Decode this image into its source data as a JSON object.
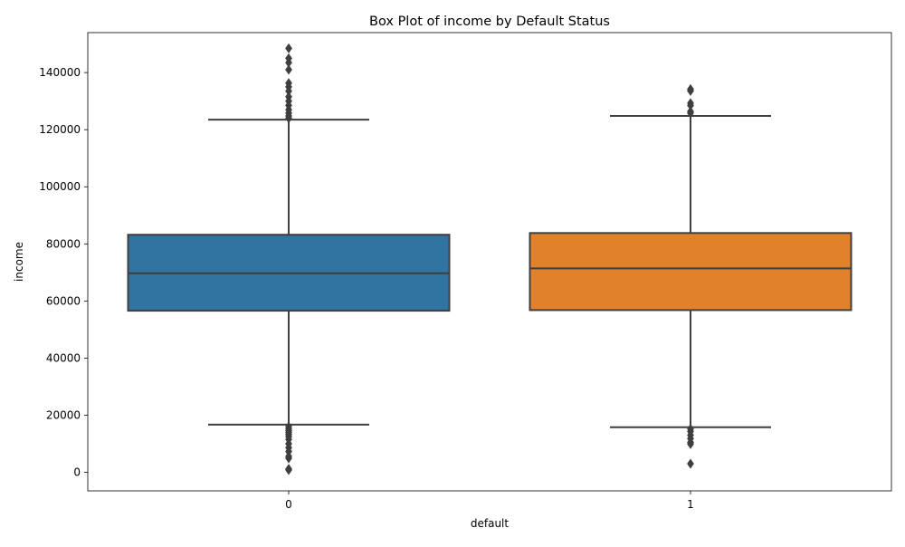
{
  "chart_data": {
    "type": "box",
    "title": "Box Plot of income by Default Status",
    "xlabel": "default",
    "ylabel": "income",
    "categories": [
      "0",
      "1"
    ],
    "ylim": [
      -6500,
      154000
    ],
    "yticks": [
      0,
      20000,
      40000,
      60000,
      80000,
      100000,
      120000,
      140000
    ],
    "ytick_labels": [
      "0",
      "20000",
      "40000",
      "60000",
      "80000",
      "100000",
      "120000",
      "140000"
    ],
    "grid": false,
    "legend": "none",
    "colors": [
      "#3274a1",
      "#e1812c"
    ],
    "series": [
      {
        "category": "0",
        "whisker_low": 16700,
        "q1": 56600,
        "median": 69700,
        "q3": 83200,
        "whisker_high": 123500,
        "outliers": [
          148500,
          145000,
          143500,
          141000,
          136300,
          135000,
          133500,
          131500,
          130000,
          128500,
          127000,
          125800,
          124800,
          124000,
          16000,
          15200,
          14600,
          14000,
          13300,
          12500,
          11500,
          10000,
          8600,
          7300,
          5600,
          4900,
          1200,
          800
        ]
      },
      {
        "category": "1",
        "whisker_low": 15800,
        "q1": 56800,
        "median": 71400,
        "q3": 83800,
        "whisker_high": 124800,
        "outliers": [
          134200,
          133600,
          129300,
          128500,
          126400,
          125800,
          15200,
          14300,
          13000,
          11800,
          10500,
          9900,
          3000
        ]
      }
    ]
  }
}
